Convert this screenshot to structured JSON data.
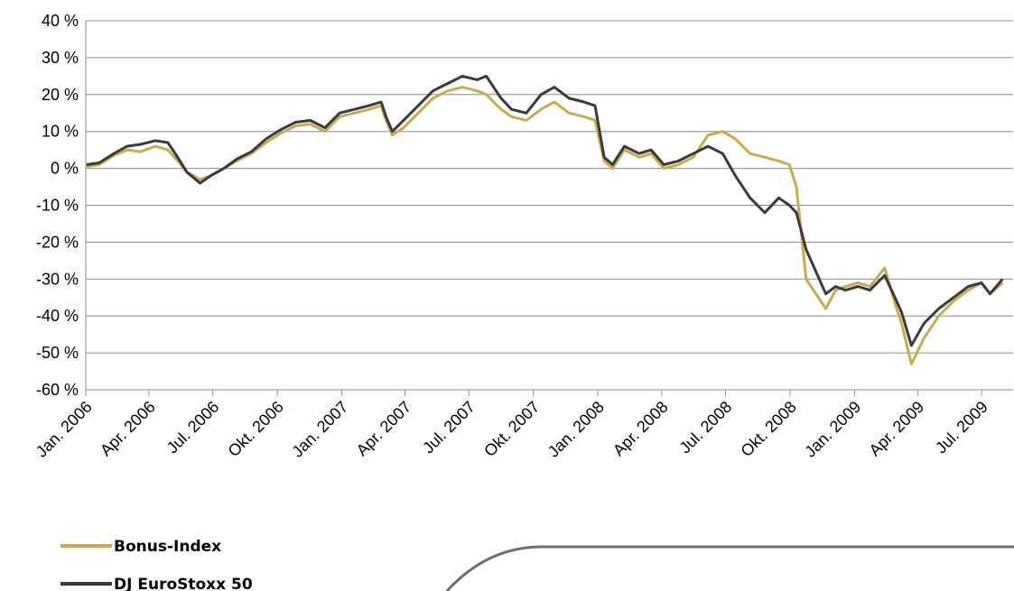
{
  "chart_data": {
    "type": "line",
    "ylim": [
      -60,
      40
    ],
    "y_ticks": [
      "40 %",
      "30 %",
      "20 %",
      "10 %",
      "0 %",
      "-10 %",
      "-20 %",
      "-30 %",
      "-40 %",
      "-50 %",
      "-60 %"
    ],
    "y_tick_values": [
      40,
      30,
      20,
      10,
      0,
      -10,
      -20,
      -30,
      -40,
      -50,
      -60
    ],
    "x_ticks": [
      "Jan. 2006",
      "Apr. 2006",
      "Jul. 2006",
      "Okt. 2006",
      "Jan. 2007",
      "Apr. 2007",
      "Jul. 2007",
      "Okt. 2007",
      "Jan. 2008",
      "Apr. 2008",
      "Jul. 2008",
      "Okt. 2008",
      "Jan. 2009",
      "Apr. 2009",
      "Jul. 2009"
    ],
    "grid": "horizontal",
    "legend_position": "bottom-left",
    "colors": {
      "Bonus-Index": "#c8aa50",
      "DJ EuroStoxx 50": "#3a3a3a",
      "gridline": "#8c8c8c"
    },
    "series": [
      {
        "name": "Bonus-Index",
        "x": [
          "2006-01-02",
          "2006-01-20",
          "2006-02-10",
          "2006-03-01",
          "2006-03-20",
          "2006-04-10",
          "2006-04-28",
          "2006-05-12",
          "2006-05-25",
          "2006-06-13",
          "2006-06-28",
          "2006-07-17",
          "2006-08-04",
          "2006-08-25",
          "2006-09-15",
          "2006-10-06",
          "2006-10-27",
          "2006-11-17",
          "2006-12-08",
          "2006-12-29",
          "2007-01-19",
          "2007-02-09",
          "2007-02-26",
          "2007-03-05",
          "2007-03-14",
          "2007-03-30",
          "2007-04-20",
          "2007-05-11",
          "2007-06-01",
          "2007-06-22",
          "2007-07-13",
          "2007-07-26",
          "2007-08-16",
          "2007-08-31",
          "2007-09-21",
          "2007-10-12",
          "2007-10-31",
          "2007-11-21",
          "2007-12-12",
          "2007-12-28",
          "2008-01-10",
          "2008-01-22",
          "2008-02-08",
          "2008-02-29",
          "2008-03-17",
          "2008-04-04",
          "2008-04-25",
          "2008-05-16",
          "2008-06-06",
          "2008-06-27",
          "2008-07-15",
          "2008-08-05",
          "2008-08-26",
          "2008-09-15",
          "2008-09-30",
          "2008-10-10",
          "2008-10-24",
          "2008-11-07",
          "2008-11-21",
          "2008-12-05",
          "2008-12-19",
          "2009-01-06",
          "2009-01-23",
          "2009-02-13",
          "2009-03-02",
          "2009-03-09",
          "2009-03-23",
          "2009-04-10",
          "2009-05-01",
          "2009-05-22",
          "2009-06-12",
          "2009-07-01",
          "2009-07-13",
          "2009-07-31"
        ],
        "values": [
          0.5,
          1,
          3.5,
          5,
          4.5,
          6,
          5,
          2,
          -1,
          -3,
          -2,
          0,
          2,
          4,
          7,
          9.5,
          11.5,
          12,
          10,
          14,
          15,
          16,
          17,
          13,
          9,
          11,
          15,
          19,
          21,
          22,
          21,
          20,
          16,
          14,
          13,
          16,
          18,
          15,
          14,
          13,
          2,
          0,
          5,
          3,
          4,
          0,
          1,
          3,
          9,
          10,
          8,
          4,
          3,
          2,
          1,
          -5,
          -30,
          -34,
          -38,
          -33,
          -32,
          -31,
          -32,
          -27,
          -38,
          -42,
          -53,
          -46,
          -40,
          -36,
          -33,
          -31,
          -34,
          -31
        ]
      },
      {
        "name": "DJ EuroStoxx 50",
        "x": [
          "2006-01-02",
          "2006-01-20",
          "2006-02-10",
          "2006-03-01",
          "2006-03-20",
          "2006-04-10",
          "2006-04-28",
          "2006-05-12",
          "2006-05-25",
          "2006-06-13",
          "2006-06-28",
          "2006-07-17",
          "2006-08-04",
          "2006-08-25",
          "2006-09-15",
          "2006-10-06",
          "2006-10-27",
          "2006-11-17",
          "2006-12-08",
          "2006-12-29",
          "2007-01-19",
          "2007-02-09",
          "2007-02-26",
          "2007-03-05",
          "2007-03-14",
          "2007-03-30",
          "2007-04-20",
          "2007-05-11",
          "2007-06-01",
          "2007-06-22",
          "2007-07-13",
          "2007-07-26",
          "2007-08-16",
          "2007-08-31",
          "2007-09-21",
          "2007-10-12",
          "2007-10-31",
          "2007-11-21",
          "2007-12-12",
          "2007-12-28",
          "2008-01-10",
          "2008-01-22",
          "2008-02-08",
          "2008-02-29",
          "2008-03-17",
          "2008-04-04",
          "2008-04-25",
          "2008-05-16",
          "2008-06-06",
          "2008-06-27",
          "2008-07-15",
          "2008-08-05",
          "2008-08-26",
          "2008-09-15",
          "2008-09-30",
          "2008-10-10",
          "2008-10-24",
          "2008-11-07",
          "2008-11-21",
          "2008-12-05",
          "2008-12-19",
          "2009-01-06",
          "2009-01-23",
          "2009-02-13",
          "2009-03-02",
          "2009-03-09",
          "2009-03-23",
          "2009-04-10",
          "2009-05-01",
          "2009-05-22",
          "2009-06-12",
          "2009-07-01",
          "2009-07-13",
          "2009-07-31"
        ],
        "values": [
          1,
          1.5,
          4,
          6,
          6.5,
          7.5,
          7,
          3,
          -1,
          -4,
          -2,
          0,
          2.5,
          4.5,
          8,
          10.5,
          12.5,
          13,
          11,
          15,
          16,
          17,
          18,
          14,
          10,
          13,
          17,
          21,
          23,
          25,
          24,
          25,
          19,
          16,
          15,
          20,
          22,
          19,
          18,
          17,
          3,
          1,
          6,
          4,
          5,
          1,
          2,
          4,
          6,
          4,
          -2,
          -8,
          -12,
          -8,
          -10,
          -12,
          -22,
          -28,
          -34,
          -32,
          -33,
          -32,
          -33,
          -29,
          -36,
          -39,
          -48,
          -42,
          -38,
          -35,
          -32,
          -31,
          -34,
          -30
        ]
      }
    ]
  }
}
